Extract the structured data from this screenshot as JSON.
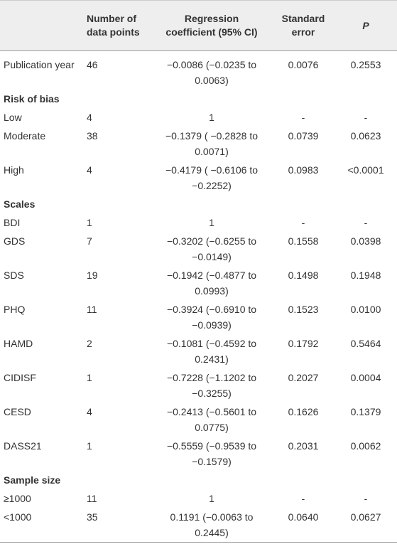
{
  "table": {
    "header": [
      "",
      "Number of data points",
      "Regression coefficient (95% CI)",
      "Standard error",
      "P"
    ],
    "rows": [
      [
        "Publication year",
        46,
        "−0.0086 (−0.0235 to 0.0063)",
        "0.0076",
        "0.2553"
      ],
      [
        "Risk of bias"
      ],
      [
        "Low",
        4,
        "1",
        "-",
        "-"
      ],
      [
        "Moderate",
        38,
        "−0.1379 ( −0.2828 to 0.0071)",
        "0.0739",
        "0.0623"
      ],
      [
        "High",
        4,
        "−0.4179 ( −0.6106 to −0.2252)",
        "0.0983",
        "<0.0001"
      ],
      [
        "Scales"
      ],
      [
        "BDI",
        1,
        "1",
        "-",
        "-"
      ],
      [
        "GDS",
        7,
        "−0.3202 (−0.6255 to −0.0149)",
        "0.1558",
        "0.0398"
      ],
      [
        "SDS",
        19,
        "−0.1942 (−0.4877 to 0.0993)",
        "0.1498",
        "0.1948"
      ],
      [
        "PHQ",
        11,
        "−0.3924 (−0.6910 to −0.0939)",
        "0.1523",
        "0.0100"
      ],
      [
        "HAMD",
        2,
        "−0.1081 (−0.4592 to 0.2431)",
        "0.1792",
        "0.5464"
      ],
      [
        "CIDISF",
        1,
        "−0.7228 (−1.1202 to −0.3255)",
        "0.2027",
        "0.0004"
      ],
      [
        "CESD",
        4,
        "−0.2413 (−0.5601 to 0.0775)",
        "0.1626",
        "0.1379"
      ],
      [
        "DASS21",
        1,
        "−0.5559 (−0.9539 to −0.1579)",
        "0.2031",
        "0.0062"
      ],
      [
        "Sample size"
      ],
      [
        "≥1000",
        11,
        "1",
        "-",
        "-"
      ],
      [
        "<1000",
        35,
        "0.1191 (−0.0063 to 0.2445)",
        "0.0640",
        "0.0627"
      ]
    ]
  }
}
